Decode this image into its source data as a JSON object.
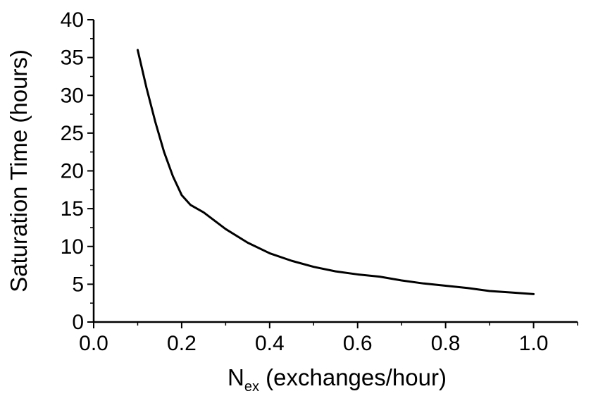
{
  "chart_data": {
    "type": "line",
    "title": "",
    "xlabel_main": "N",
    "xlabel_sub": "ex",
    "xlabel_rest": " (exchanges/hour)",
    "ylabel": "Saturation Time (hours)",
    "xlim": [
      0.0,
      1.1
    ],
    "ylim": [
      0,
      40
    ],
    "x_ticks": [
      0.0,
      0.2,
      0.4,
      0.6,
      0.8,
      1.0
    ],
    "x_tick_labels": [
      "0.0",
      "0.2",
      "0.4",
      "0.6",
      "0.8",
      "1.0"
    ],
    "y_ticks": [
      0,
      5,
      10,
      15,
      20,
      25,
      30,
      35,
      40
    ],
    "y_tick_labels": [
      "0",
      "5",
      "10",
      "15",
      "20",
      "25",
      "30",
      "35",
      "40"
    ],
    "grid": false,
    "series": [
      {
        "x": [
          0.1,
          0.12,
          0.14,
          0.16,
          0.18,
          0.2,
          0.22,
          0.25,
          0.3,
          0.35,
          0.4,
          0.45,
          0.5,
          0.55,
          0.6,
          0.65,
          0.7,
          0.75,
          0.8,
          0.85,
          0.9,
          0.95,
          1.0
        ],
        "y": [
          36.0,
          31.0,
          26.5,
          22.5,
          19.3,
          16.8,
          15.5,
          14.5,
          12.3,
          10.5,
          9.1,
          8.1,
          7.3,
          6.7,
          6.3,
          6.0,
          5.5,
          5.1,
          4.8,
          4.5,
          4.1,
          3.9,
          3.7
        ],
        "color": "#000000"
      }
    ]
  }
}
